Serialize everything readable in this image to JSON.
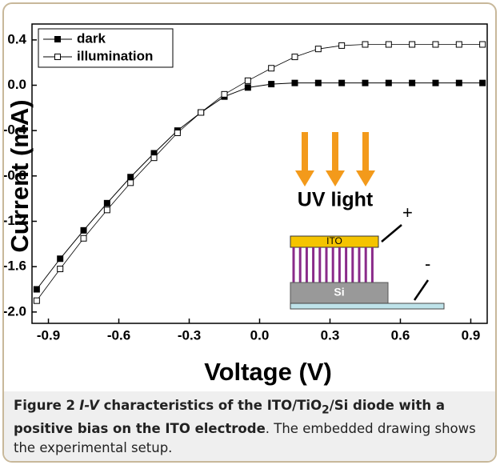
{
  "chart_data": {
    "type": "line",
    "xlabel": "Voltage (V)",
    "ylabel": "Current (mA)",
    "x": [
      -0.95,
      -0.85,
      -0.75,
      -0.65,
      -0.55,
      -0.45,
      -0.35,
      -0.25,
      -0.15,
      -0.05,
      0.05,
      0.15,
      0.25,
      0.35,
      0.45,
      0.55,
      0.65,
      0.75,
      0.85,
      0.95
    ],
    "series": [
      {
        "name": "dark",
        "color": "#000000",
        "marker": "filled-square",
        "values": [
          -1.8,
          -1.53,
          -1.28,
          -1.04,
          -0.81,
          -0.6,
          -0.4,
          -0.24,
          -0.1,
          -0.02,
          0.01,
          0.02,
          0.02,
          0.02,
          0.02,
          0.02,
          0.02,
          0.02,
          0.02,
          0.02
        ]
      },
      {
        "name": "illumination",
        "color": "#000000",
        "marker": "open-square",
        "values": [
          -1.9,
          -1.62,
          -1.35,
          -1.1,
          -0.86,
          -0.64,
          -0.42,
          -0.24,
          -0.08,
          0.04,
          0.15,
          0.25,
          0.32,
          0.35,
          0.36,
          0.36,
          0.36,
          0.36,
          0.36,
          0.36
        ]
      }
    ],
    "xlim": [
      -0.97,
      0.97
    ],
    "ylim": [
      -2.1,
      0.54
    ],
    "xticks": [
      -0.9,
      -0.6,
      -0.3,
      {
        "value": 0,
        "label": "0.0"
      },
      0.3,
      0.6,
      0.9
    ],
    "yticks": [
      0.4,
      {
        "value": 0,
        "label": "0.0"
      },
      -0.4,
      -0.8,
      -1.2,
      -1.6,
      {
        "value": -2,
        "label": "-2.0"
      }
    ],
    "legend": "upper left",
    "inset": {
      "light": "UV light",
      "plus": "+",
      "minus": "-",
      "top_layer": "ITO",
      "substrate": "Si"
    }
  },
  "caption": {
    "label": "Figure 2",
    "iv": "I-V",
    "bold_a": " characteristics of the ITO/TiO",
    "sub": "2",
    "bold_b": "/Si diode with a positive bias on the ITO electrode",
    "rest": ". The embedded drawing shows the experimental setup."
  }
}
